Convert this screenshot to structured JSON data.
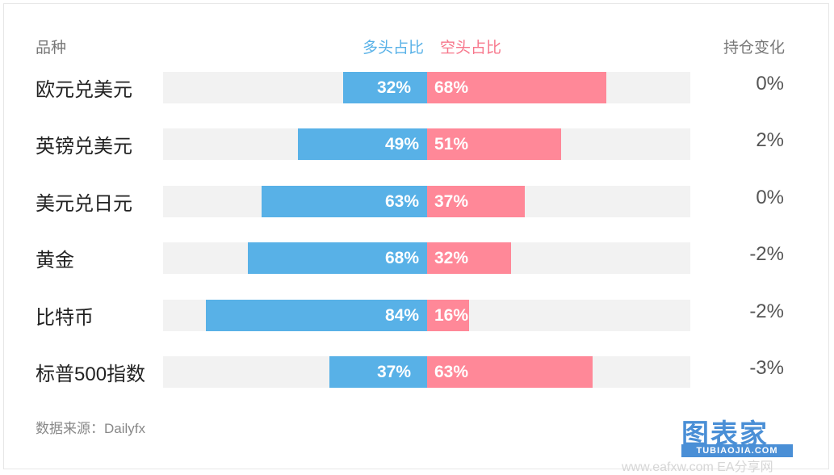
{
  "header": {
    "category": "品种",
    "long": "多头占比",
    "short": "空头占比",
    "change": "持仓变化"
  },
  "colors": {
    "long": "#58b1e7",
    "short": "#ff8898",
    "track": "#f2f2f2"
  },
  "source": "数据来源：Dailyfx",
  "logo": {
    "main": "图表家",
    "sub": "TUBIAOJIA.COM"
  },
  "watermark": "www.eafxw.com  EA分享网",
  "chart_data": {
    "type": "bar",
    "categories": [
      "欧元兑美元",
      "英镑兑美元",
      "美元兑日元",
      "黄金",
      "比特币",
      "标普500指数"
    ],
    "series": [
      {
        "name": "多头占比",
        "values": [
          32,
          49,
          63,
          68,
          84,
          37
        ]
      },
      {
        "name": "空头占比",
        "values": [
          68,
          51,
          37,
          32,
          16,
          63
        ]
      }
    ],
    "long_labels": [
      "32%",
      "49%",
      "63%",
      "68%",
      "84%",
      "37%"
    ],
    "short_labels": [
      "68%",
      "51%",
      "37%",
      "32%",
      "16%",
      "63%"
    ],
    "change_labels": [
      "0%",
      "2%",
      "0%",
      "-2%",
      "-2%",
      "-3%"
    ],
    "xlim": [
      -100,
      100
    ]
  }
}
